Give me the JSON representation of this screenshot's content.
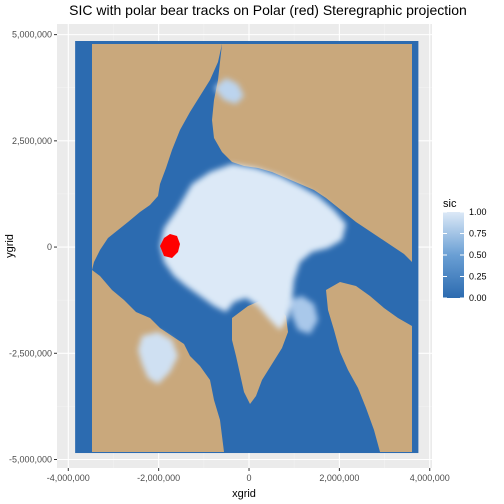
{
  "chart_data": {
    "type": "heatmap",
    "title": "SIC with polar bear tracks on Polar (red) Steregraphic projection",
    "xlabel": "xgrid",
    "ylabel": "ygrid",
    "xlim": [
      -4250000,
      4050000
    ],
    "ylim": [
      -5200000,
      5250000
    ],
    "x_ticks": [
      {
        "value": -4000000,
        "label": "-4,000,000"
      },
      {
        "value": -2000000,
        "label": "-2,000,000"
      },
      {
        "value": 0,
        "label": "0"
      },
      {
        "value": 2000000,
        "label": "2,000,000"
      },
      {
        "value": 4000000,
        "label": "4,000,000"
      }
    ],
    "y_ticks": [
      {
        "value": 5000000,
        "label": "5,000,000"
      },
      {
        "value": 2500000,
        "label": "2,500,000"
      },
      {
        "value": 0,
        "label": "0"
      },
      {
        "value": -2500000,
        "label": "-2,500,000"
      },
      {
        "value": -5000000,
        "label": "-5,000,000"
      }
    ],
    "grid": true,
    "raster_extent": {
      "x": [
        -3850000,
        3750000
      ],
      "y": [
        -4850000,
        4850000
      ]
    },
    "fill_scale": {
      "name": "sic",
      "range": [
        0,
        1
      ],
      "low_color": "#2c6bb0",
      "high_color": "#dce9f7",
      "breaks": [
        {
          "value": 1.0,
          "label": "1.00"
        },
        {
          "value": 0.75,
          "label": "0.75"
        },
        {
          "value": 0.5,
          "label": "0.50"
        },
        {
          "value": 0.25,
          "label": "0.25"
        },
        {
          "value": 0.0,
          "label": "0.00"
        }
      ]
    },
    "land_color": "#c9a87c",
    "track_color": "#ff0000",
    "track_approx_center": {
      "x": -1950000,
      "y": 100000
    },
    "legend_position": "right"
  },
  "colors": {
    "panel_background": "#ebebeb",
    "grid_major": "#ffffff",
    "grid_minor": "#f2f2f2"
  }
}
